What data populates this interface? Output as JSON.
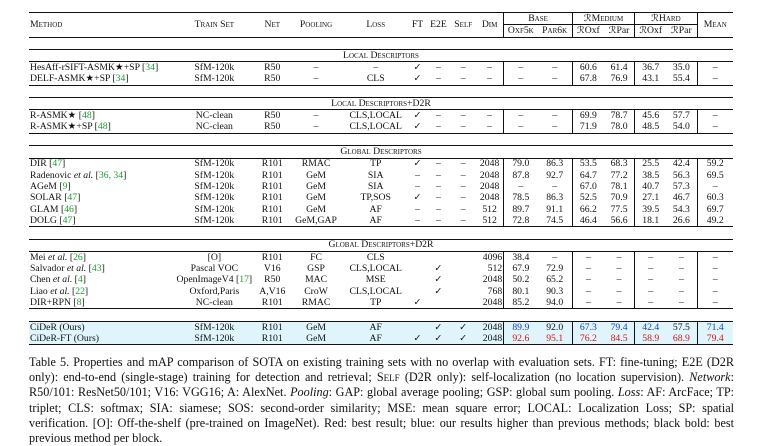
{
  "header": {
    "method": "Method",
    "train_set": "Train Set",
    "net": "Net",
    "pooling": "Pooling",
    "loss": "Loss",
    "ft": "FT",
    "e2e": "E2E",
    "self": "Self",
    "dim": "Dim",
    "base": "Base",
    "rmedium": "ℛMedium",
    "rhard": "ℛHard",
    "mean": "Mean",
    "oxf5k": "Oxf5k",
    "par6k": "Par6k",
    "roxf_m": "ℛOxf",
    "rpar_m": "ℛPar",
    "roxf_h": "ℛOxf",
    "rpar_h": "ℛPar"
  },
  "sections": {
    "local": "Local Descriptors",
    "local_d2r": "Local Descriptors+D2R",
    "global": "Global Descriptors",
    "global_d2r": "Global Descriptors+D2R"
  },
  "rows": {
    "hesaff": {
      "method": "HesAff-rSIFT-ASMK★+SP",
      "cite": "34",
      "train": "SfM-120k",
      "net": "R50",
      "pool": "–",
      "loss": "–",
      "ft": "✓",
      "e2e": "–",
      "self": "–",
      "dim": "–",
      "oxf": "–",
      "par": "–",
      "rom": "60.6",
      "rpm": "61.4",
      "roh": "36.7",
      "rph": "35.0",
      "mean": "–"
    },
    "delf": {
      "method": "DELF-ASMK★+SP",
      "cite": "34",
      "train": "SfM-120k",
      "net": "R50",
      "pool": "–",
      "loss": "CLS",
      "ft": "✓",
      "e2e": "–",
      "self": "–",
      "dim": "–",
      "oxf": "–",
      "par": "–",
      "rom": "67.8",
      "rpm": "76.9",
      "roh": "43.1",
      "rph": "55.4",
      "mean": "–"
    },
    "rasmk": {
      "method": "R-ASMK★",
      "cite": "48",
      "train": "NC-clean",
      "net": "R50",
      "pool": "–",
      "loss": "CLS,LOCAL",
      "ft": "✓",
      "e2e": "–",
      "self": "–",
      "dim": "–",
      "oxf": "–",
      "par": "–",
      "rom": "69.9",
      "rpm": "78.7",
      "roh": "45.6",
      "rph": "57.7",
      "mean": "–"
    },
    "rasmksp": {
      "method": "R-ASMK★+SP",
      "cite": "48",
      "train": "NC-clean",
      "net": "R50",
      "pool": "–",
      "loss": "CLS,LOCAL",
      "ft": "✓",
      "e2e": "–",
      "self": "–",
      "dim": "–",
      "oxf": "–",
      "par": "–",
      "rom": "71.9",
      "rpm": "78.0",
      "roh": "48.5",
      "rph": "54.0",
      "mean": "–"
    },
    "dir": {
      "method": "DIR",
      "cite": "47",
      "train": "SfM-120k",
      "net": "R101",
      "pool": "RMAC",
      "loss": "TP",
      "ft": "✓",
      "e2e": "–",
      "self": "–",
      "dim": "2048",
      "oxf": "79.0",
      "par": "86.3",
      "rom": "53.5",
      "rpm": "68.3",
      "roh": "25.5",
      "rph": "42.4",
      "mean": "59.2"
    },
    "radenovic": {
      "method": "Radenovic",
      "etal": "et al.",
      "cite": "36, 34",
      "train": "SfM-120k",
      "net": "R101",
      "pool": "GeM",
      "loss": "SIA",
      "ft": "–",
      "e2e": "–",
      "self": "–",
      "dim": "2048",
      "oxf": "87.8",
      "par": "92.7",
      "rom": "64.7",
      "rpm": "77.2",
      "roh": "38.5",
      "rph": "56.3",
      "mean": "69.5"
    },
    "agem": {
      "method": "AGeM",
      "cite": "9",
      "train": "SfM-120k",
      "net": "R101",
      "pool": "GeM",
      "loss": "SIA",
      "ft": "–",
      "e2e": "–",
      "self": "–",
      "dim": "2048",
      "oxf": "–",
      "par": "–",
      "rom": "67.0",
      "rpm": "78.1",
      "roh": "40.7",
      "rph": "57.3",
      "mean": "–"
    },
    "solar": {
      "method": "SOLAR",
      "cite": "47",
      "train": "SfM-120k",
      "net": "R101",
      "pool": "GeM",
      "loss": "TP,SOS",
      "ft": "✓",
      "e2e": "–",
      "self": "–",
      "dim": "2048",
      "oxf": "78.5",
      "par": "86.3",
      "rom": "52.5",
      "rpm": "70.9",
      "roh": "27.1",
      "rph": "46.7",
      "mean": "60.3"
    },
    "glam": {
      "method": "GLAM",
      "cite": "46",
      "train": "SfM-120k",
      "net": "R101",
      "pool": "GeM",
      "loss": "AF",
      "ft": "–",
      "e2e": "–",
      "self": "–",
      "dim": "512",
      "oxf": "89.7",
      "par": "91.1",
      "rom": "66.2",
      "rpm": "77.5",
      "roh": "39.5",
      "rph": "54.3",
      "mean": "69.7"
    },
    "dolg": {
      "method": "DOLG",
      "cite": "47",
      "train": "SfM-120k",
      "net": "R101",
      "pool": "GeM,GAP",
      "loss": "AF",
      "ft": "–",
      "e2e": "–",
      "self": "–",
      "dim": "512",
      "oxf": "72.8",
      "par": "74.5",
      "rom": "46.4",
      "rpm": "56.6",
      "roh": "18.1",
      "rph": "26.6",
      "mean": "49.2"
    },
    "mei": {
      "method": "Mei",
      "etal": "et al.",
      "cite": "26",
      "train": "[O]",
      "net": "R101",
      "pool": "FC",
      "loss": "CLS",
      "ft": "",
      "e2e": "",
      "self": "",
      "dim": "4096",
      "oxf": "38.4",
      "par": "–",
      "rom": "–",
      "rpm": "–",
      "roh": "–",
      "rph": "–",
      "mean": "–"
    },
    "salvador": {
      "method": "Salvador",
      "etal": "et al.",
      "cite": "43",
      "train": "Pascal VOC",
      "net": "V16",
      "pool": "GSP",
      "loss": "CLS,LOCAL",
      "ft": "",
      "e2e": "✓",
      "self": "",
      "dim": "512",
      "oxf": "67.9",
      "par": "72.9",
      "rom": "–",
      "rpm": "–",
      "roh": "–",
      "rph": "–",
      "mean": "–"
    },
    "chen": {
      "method": "Chen",
      "etal": "et al.",
      "cite": "4",
      "train": "OpenImageV4",
      "cite2": "17",
      "net": "R50",
      "pool": "MAC",
      "loss": "MSE",
      "ft": "",
      "e2e": "✓",
      "self": "",
      "dim": "2048",
      "oxf": "50.2",
      "par": "65.2",
      "rom": "–",
      "rpm": "–",
      "roh": "–",
      "rph": "–",
      "mean": "–"
    },
    "liao": {
      "method": "Liao",
      "etal": "et al.",
      "cite": "22",
      "train": "Oxford,Paris",
      "net": "A,V16",
      "pool": "CroW",
      "loss": "CLS,LOCAL",
      "ft": "",
      "e2e": "✓",
      "self": "",
      "dim": "768",
      "oxf": "80.1",
      "par": "90.3",
      "rom": "–",
      "rpm": "–",
      "roh": "–",
      "rph": "–",
      "mean": "–"
    },
    "dirrpn": {
      "method": "DIR+RPN",
      "cite": "8",
      "train": "NC-clean",
      "net": "R101",
      "pool": "RMAC",
      "loss": "TP",
      "ft": "✓",
      "e2e": "",
      "self": "",
      "dim": "2048",
      "oxf": "85.2",
      "par": "94.0",
      "rom": "–",
      "rpm": "–",
      "roh": "–",
      "rph": "–",
      "mean": "–"
    },
    "cider": {
      "method": "CiDeR (Ours)",
      "train": "SfM-120k",
      "net": "R101",
      "pool": "GeM",
      "loss": "AF",
      "ft": "",
      "e2e": "✓",
      "self": "✓",
      "dim": "2048",
      "oxf": "89.9",
      "par": "92.0",
      "rom": "67.3",
      "rpm": "79.4",
      "roh": "42.4",
      "rph": "57.5",
      "mean": "71.4"
    },
    "ciderft": {
      "method": "CiDeR-FT (Ours)",
      "train": "SfM-120k",
      "net": "R101",
      "pool": "GeM",
      "loss": "AF",
      "ft": "✓",
      "e2e": "✓",
      "self": "✓",
      "dim": "2048",
      "oxf": "92.6",
      "par": "95.1",
      "rom": "76.2",
      "rpm": "84.5",
      "roh": "58.9",
      "rph": "68.9",
      "mean": "79.4"
    }
  },
  "caption": {
    "p1": "Table 5. Properties and mAP comparison of SOTA on existing training sets with no overlap with evaluation sets. FT: fine-tuning; E2E (D2R only): end-to-end (single-stage) training for detection and retrieval; ",
    "self_sc": "Self",
    "p2": " (D2R only): self-localization (no location supervision). ",
    "network": "Network",
    "p3": ": R50/101: ResNet50/101; V16: VGG16; A: AlexNet. ",
    "pooling": "Pooling",
    "p4": ": GAP: global average pooling; GSP: global sum pooling. ",
    "loss": "Loss",
    "p5": ": AF: ArcFace; TP: triplet; CLS: softmax; SIA: siamese; SOS: second-order similarity; MSE: mean square error; LOCAL: Localization Loss; SP: spatial verification. [O]: Off-the-shelf (pre-trained on ImageNet). Red: best result; blue: our results higher than previous methods; black bold: best previous method per block."
  },
  "colors": {
    "red": "#d21414",
    "blue": "#1a3fc4",
    "cite_green": "#1b9e2b",
    "highlight": "#dff5fb"
  }
}
